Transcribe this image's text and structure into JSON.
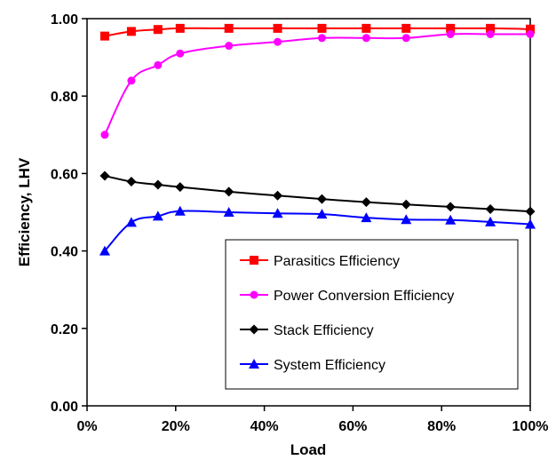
{
  "chart_data": {
    "type": "line",
    "title": "",
    "xlabel": "Load",
    "ylabel": "Efficiency, LHV",
    "xlim": [
      0,
      100
    ],
    "ylim": [
      0,
      1
    ],
    "x_ticks": [
      0,
      20,
      40,
      60,
      80,
      100
    ],
    "x_tick_labels": [
      "0%",
      "20%",
      "40%",
      "60%",
      "80%",
      "100%"
    ],
    "y_ticks": [
      0,
      0.2,
      0.4,
      0.6,
      0.8,
      1.0
    ],
    "y_tick_labels": [
      "0.00",
      "0.20",
      "0.40",
      "0.60",
      "0.80",
      "1.00"
    ],
    "grid": false,
    "legend_position": "bottom-right",
    "series": [
      {
        "name": "Parasitics Efficiency",
        "color": "#ff0000",
        "marker": "square",
        "x": [
          4,
          10,
          16,
          21,
          32,
          43,
          53,
          63,
          72,
          82,
          91,
          100
        ],
        "y": [
          0.955,
          0.967,
          0.972,
          0.975,
          0.975,
          0.975,
          0.975,
          0.975,
          0.975,
          0.975,
          0.975,
          0.973
        ]
      },
      {
        "name": "Power Conversion Efficiency",
        "color": "#ff00ff",
        "marker": "circle",
        "x": [
          4,
          10,
          16,
          21,
          32,
          43,
          53,
          63,
          72,
          82,
          91,
          100
        ],
        "y": [
          0.7,
          0.84,
          0.88,
          0.91,
          0.93,
          0.94,
          0.95,
          0.95,
          0.95,
          0.96,
          0.96,
          0.96
        ]
      },
      {
        "name": "Stack Efficiency",
        "color": "#000000",
        "marker": "diamond",
        "x": [
          4,
          10,
          16,
          21,
          32,
          43,
          53,
          63,
          72,
          82,
          91,
          100
        ],
        "y": [
          0.594,
          0.579,
          0.571,
          0.565,
          0.553,
          0.543,
          0.534,
          0.526,
          0.52,
          0.514,
          0.508,
          0.502
        ]
      },
      {
        "name": "System Efficiency",
        "color": "#0000ff",
        "marker": "triangle",
        "x": [
          4,
          10,
          16,
          21,
          32,
          43,
          53,
          63,
          72,
          82,
          91,
          100
        ],
        "y": [
          0.4,
          0.474,
          0.49,
          0.503,
          0.5,
          0.497,
          0.495,
          0.486,
          0.481,
          0.48,
          0.475,
          0.469
        ]
      }
    ]
  }
}
